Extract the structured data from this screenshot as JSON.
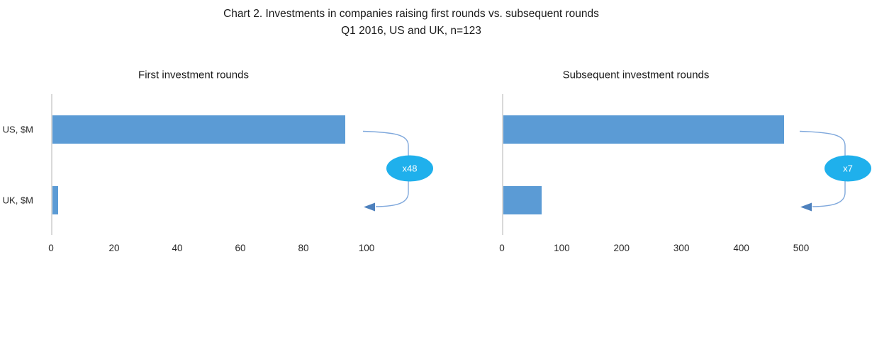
{
  "title": {
    "line1": "Chart 2. Investments in companies raising first rounds vs. subsequent rounds",
    "line2": "Q1 2016, US and UK, n=123"
  },
  "chart_data": [
    {
      "type": "bar",
      "orientation": "horizontal",
      "title": "First investment rounds",
      "categories": [
        "US, $M",
        "UK, $M"
      ],
      "values": [
        93,
        2
      ],
      "xlim": [
        0,
        100
      ],
      "xticks": [
        0,
        20,
        40,
        60,
        80,
        100
      ],
      "grid": false,
      "legend": "none",
      "annotation": "x48",
      "annotation_meaning": "US first-round investment is ~48 times UK",
      "show_category_labels": true
    },
    {
      "type": "bar",
      "orientation": "horizontal",
      "title": "Subsequent investment rounds",
      "categories": [
        "US, $M",
        "UK, $M"
      ],
      "values": [
        470,
        65
      ],
      "xlim": [
        0,
        500
      ],
      "xticks": [
        0,
        100,
        200,
        300,
        400,
        500
      ],
      "grid": false,
      "legend": "none",
      "annotation": "x7",
      "annotation_meaning": "US subsequent-round investment is ~7 times UK",
      "show_category_labels": false
    }
  ],
  "colors": {
    "bar": "#5b9bd5",
    "axis_line": "#d9d9d9",
    "callout_bubble": "#1fb0ec",
    "callout_text": "#ffffff",
    "connector_line": "#7fa8dc",
    "connector_arrowhead": "#4e81bd",
    "text": "#1a1a1a"
  }
}
